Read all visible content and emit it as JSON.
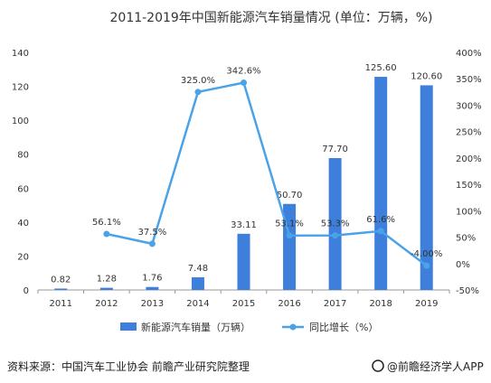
{
  "chart_data": {
    "type": "bar",
    "title": "2011-2019年中国新能源汽车销量情况 (单位：万辆，%)",
    "categories": [
      "2011",
      "2012",
      "2013",
      "2014",
      "2015",
      "2016",
      "2017",
      "2018",
      "2019"
    ],
    "series": [
      {
        "name": "新能源汽车销量（万辆）",
        "type": "bar",
        "axis": "left",
        "values": [
          0.82,
          1.28,
          1.76,
          7.48,
          33.11,
          50.7,
          77.7,
          125.6,
          120.6
        ],
        "labels": [
          "0.82",
          "1.28",
          "1.76",
          "7.48",
          "33.11",
          "50.70",
          "77.70",
          "125.60",
          "120.60"
        ],
        "color": "#3d7fdb"
      },
      {
        "name": "同比增长（%）",
        "type": "line",
        "axis": "right",
        "values": [
          null,
          56.1,
          37.5,
          325.0,
          342.6,
          53.1,
          53.3,
          61.6,
          -4.0
        ],
        "labels": [
          "",
          "56.1%",
          "37.5%",
          "325.0%",
          "342.6%",
          "53.1%",
          "53.3%",
          "61.6%",
          "-4.00%"
        ],
        "color": "#4aa3e8"
      }
    ],
    "ylim_left": [
      0,
      140
    ],
    "yticks_left": [
      "0",
      "20",
      "40",
      "60",
      "80",
      "100",
      "120",
      "140"
    ],
    "yticks_left_values": [
      0,
      20,
      40,
      60,
      80,
      100,
      120,
      140
    ],
    "ylim_right": [
      -50,
      400
    ],
    "yticks_right": [
      "-50%",
      "0%",
      "50%",
      "100%",
      "150%",
      "200%",
      "250%",
      "300%",
      "350%",
      "400%"
    ],
    "yticks_right_values": [
      -50,
      0,
      50,
      100,
      150,
      200,
      250,
      300,
      350,
      400
    ],
    "grid": false,
    "legend_placement": "bottom"
  },
  "footer": {
    "source": "资料来源：中国汽车工业协会 前瞻产业研究院整理",
    "brand": "@前瞻经济学人APP",
    "brand_icon": "qianzhan-logo-icon"
  }
}
